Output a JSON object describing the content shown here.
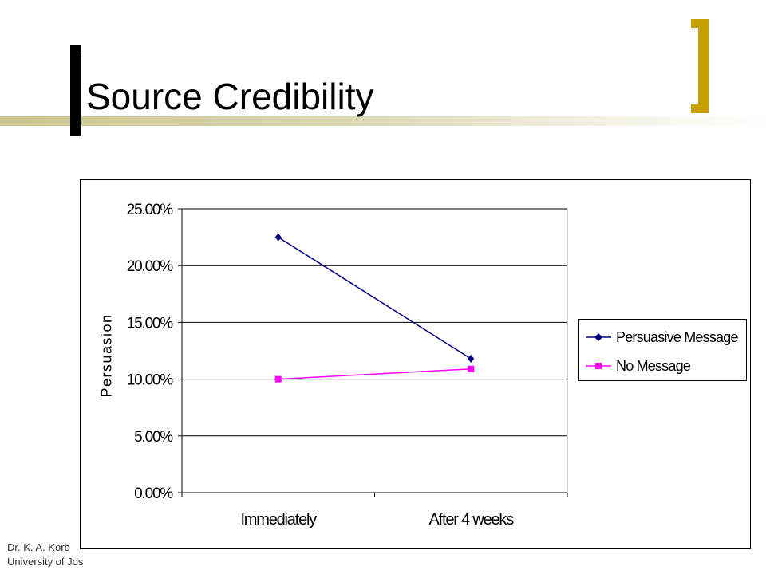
{
  "slide": {
    "title": "Source Credibility",
    "footer_lines": [
      "Dr. K. A. Korb",
      "University of Jos"
    ]
  },
  "colors": {
    "bracket_left": "#000000",
    "bracket_right": "#c8a000",
    "band": "#d4d0a4"
  },
  "chart_data": {
    "type": "line",
    "title": "",
    "xlabel": "",
    "ylabel": "Persuasion",
    "categories": [
      "Immediately",
      "After 4 weeks"
    ],
    "ylim": [
      0,
      0.25
    ],
    "y_ticks": [
      0,
      0.05,
      0.1,
      0.15,
      0.2,
      0.25
    ],
    "y_tick_labels": [
      "0.00%",
      "5.00%",
      "10.00%",
      "15.00%",
      "20.00%",
      "25.00%"
    ],
    "grid": true,
    "legend_position": "right",
    "series": [
      {
        "name": "Persuasive Message",
        "values": [
          0.225,
          0.118
        ],
        "color": "#000080",
        "marker": "diamond"
      },
      {
        "name": "No Message",
        "values": [
          0.1,
          0.109
        ],
        "color": "#ff00ff",
        "marker": "square"
      }
    ]
  }
}
